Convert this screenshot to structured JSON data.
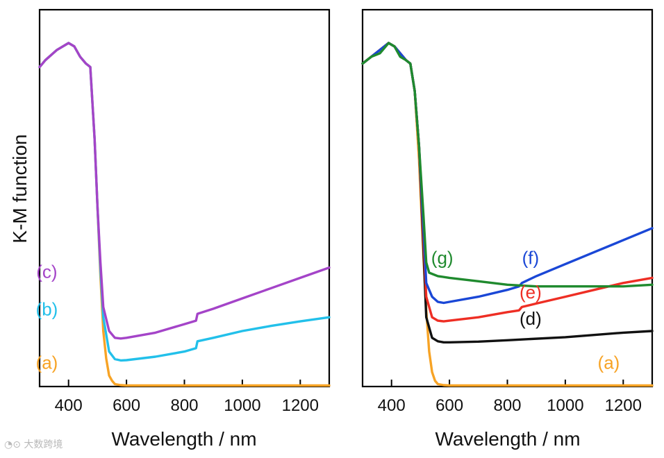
{
  "chart_data": [
    {
      "type": "line",
      "panel": "left",
      "xlabel": "Wavelength  / nm",
      "ylabel": "K-M function",
      "xlim": [
        300,
        1300
      ],
      "ylim": [
        0,
        1
      ],
      "xticks": [
        400,
        600,
        800,
        1000,
        1200
      ],
      "series": [
        {
          "name": "(a)",
          "color": "#f7a325",
          "x": [
            300,
            320,
            360,
            400,
            420,
            440,
            460,
            475,
            490,
            500,
            510,
            520,
            530,
            540,
            550,
            560,
            580,
            600,
            700,
            800,
            1000,
            1200,
            1300
          ],
          "y": [
            0.93,
            0.95,
            0.98,
            1.0,
            0.99,
            0.96,
            0.94,
            0.93,
            0.72,
            0.52,
            0.32,
            0.16,
            0.08,
            0.03,
            0.015,
            0.005,
            0.002,
            0.001,
            0.001,
            0.001,
            0.001,
            0.001,
            0.001
          ],
          "label_pos": [
            325,
            0.05
          ]
        },
        {
          "name": "(b)",
          "color": "#22c0ea",
          "x": [
            300,
            320,
            360,
            400,
            420,
            440,
            460,
            475,
            490,
            500,
            510,
            520,
            540,
            560,
            580,
            600,
            700,
            800,
            840,
            845,
            900,
            1000,
            1100,
            1200,
            1300
          ],
          "y": [
            0.93,
            0.95,
            0.98,
            1.0,
            0.99,
            0.96,
            0.94,
            0.93,
            0.72,
            0.52,
            0.34,
            0.2,
            0.1,
            0.078,
            0.074,
            0.075,
            0.085,
            0.1,
            0.11,
            0.13,
            0.14,
            0.16,
            0.175,
            0.188,
            0.2
          ],
          "label_pos": [
            325,
            0.205
          ]
        },
        {
          "name": "(c)",
          "color": "#a444c8",
          "x": [
            300,
            320,
            360,
            400,
            420,
            440,
            460,
            475,
            490,
            500,
            510,
            520,
            540,
            560,
            580,
            600,
            700,
            800,
            840,
            845,
            900,
            1000,
            1100,
            1200,
            1300
          ],
          "y": [
            0.93,
            0.95,
            0.98,
            1.0,
            0.99,
            0.96,
            0.94,
            0.93,
            0.72,
            0.52,
            0.36,
            0.23,
            0.16,
            0.14,
            0.138,
            0.14,
            0.155,
            0.18,
            0.19,
            0.21,
            0.225,
            0.255,
            0.285,
            0.315,
            0.345
          ],
          "label_pos": [
            325,
            0.315
          ]
        }
      ]
    },
    {
      "type": "line",
      "panel": "right",
      "xlabel": "Wavelength  / nm",
      "ylabel": "",
      "xlim": [
        300,
        1300
      ],
      "ylim": [
        0,
        1
      ],
      "xticks": [
        400,
        600,
        800,
        1000,
        1200
      ],
      "series": [
        {
          "name": "(a)",
          "color": "#f7a325",
          "x": [
            300,
            330,
            360,
            390,
            410,
            430,
            450,
            465,
            480,
            495,
            510,
            520,
            530,
            540,
            550,
            560,
            580,
            600,
            700,
            800,
            1000,
            1200,
            1300
          ],
          "y": [
            0.94,
            0.96,
            0.98,
            1.0,
            0.99,
            0.97,
            0.95,
            0.94,
            0.86,
            0.66,
            0.38,
            0.22,
            0.1,
            0.04,
            0.015,
            0.005,
            0.002,
            0.001,
            0.001,
            0.001,
            0.001,
            0.001,
            0.001
          ],
          "label_pos": [
            1150,
            0.05
          ]
        },
        {
          "name": "(d)",
          "color": "#111111",
          "x": [
            300,
            330,
            360,
            390,
            410,
            430,
            450,
            465,
            480,
            495,
            510,
            520,
            540,
            560,
            580,
            600,
            700,
            800,
            1000,
            1200,
            1300
          ],
          "y": [
            0.94,
            0.96,
            0.98,
            1.0,
            0.99,
            0.97,
            0.95,
            0.94,
            0.86,
            0.7,
            0.4,
            0.2,
            0.14,
            0.13,
            0.127,
            0.127,
            0.129,
            0.133,
            0.142,
            0.155,
            0.16
          ],
          "label_pos": [
            880,
            0.178
          ]
        },
        {
          "name": "(e)",
          "color": "#ee2e24",
          "x": [
            300,
            330,
            360,
            390,
            410,
            430,
            450,
            465,
            480,
            495,
            510,
            520,
            540,
            560,
            580,
            600,
            700,
            800,
            840,
            850,
            900,
            1000,
            1100,
            1200,
            1300
          ],
          "y": [
            0.94,
            0.96,
            0.98,
            1.0,
            0.99,
            0.97,
            0.95,
            0.94,
            0.86,
            0.7,
            0.43,
            0.26,
            0.2,
            0.19,
            0.188,
            0.19,
            0.2,
            0.215,
            0.22,
            0.23,
            0.24,
            0.26,
            0.28,
            0.3,
            0.315
          ],
          "label_pos": [
            880,
            0.255
          ]
        },
        {
          "name": "(f)",
          "color": "#1a47d6",
          "x": [
            300,
            330,
            360,
            390,
            410,
            430,
            450,
            465,
            480,
            495,
            510,
            520,
            540,
            560,
            580,
            600,
            700,
            800,
            840,
            850,
            900,
            1000,
            1100,
            1200,
            1300
          ],
          "y": [
            0.94,
            0.96,
            0.98,
            1.0,
            0.99,
            0.97,
            0.95,
            0.94,
            0.86,
            0.7,
            0.46,
            0.3,
            0.26,
            0.245,
            0.242,
            0.245,
            0.26,
            0.28,
            0.29,
            0.3,
            0.32,
            0.355,
            0.39,
            0.425,
            0.46
          ],
          "label_pos": [
            880,
            0.355
          ]
        },
        {
          "name": "(g)",
          "color": "#1f8a2e",
          "x": [
            300,
            330,
            360,
            390,
            410,
            430,
            450,
            465,
            480,
            495,
            510,
            520,
            530,
            560,
            600,
            700,
            800,
            900,
            1000,
            1100,
            1200,
            1300
          ],
          "y": [
            0.94,
            0.96,
            0.97,
            1.0,
            0.99,
            0.96,
            0.95,
            0.94,
            0.86,
            0.7,
            0.5,
            0.36,
            0.33,
            0.32,
            0.315,
            0.305,
            0.295,
            0.29,
            0.29,
            0.29,
            0.29,
            0.295
          ],
          "label_pos": [
            575,
            0.355
          ]
        }
      ]
    }
  ],
  "watermark": "大数跨境"
}
